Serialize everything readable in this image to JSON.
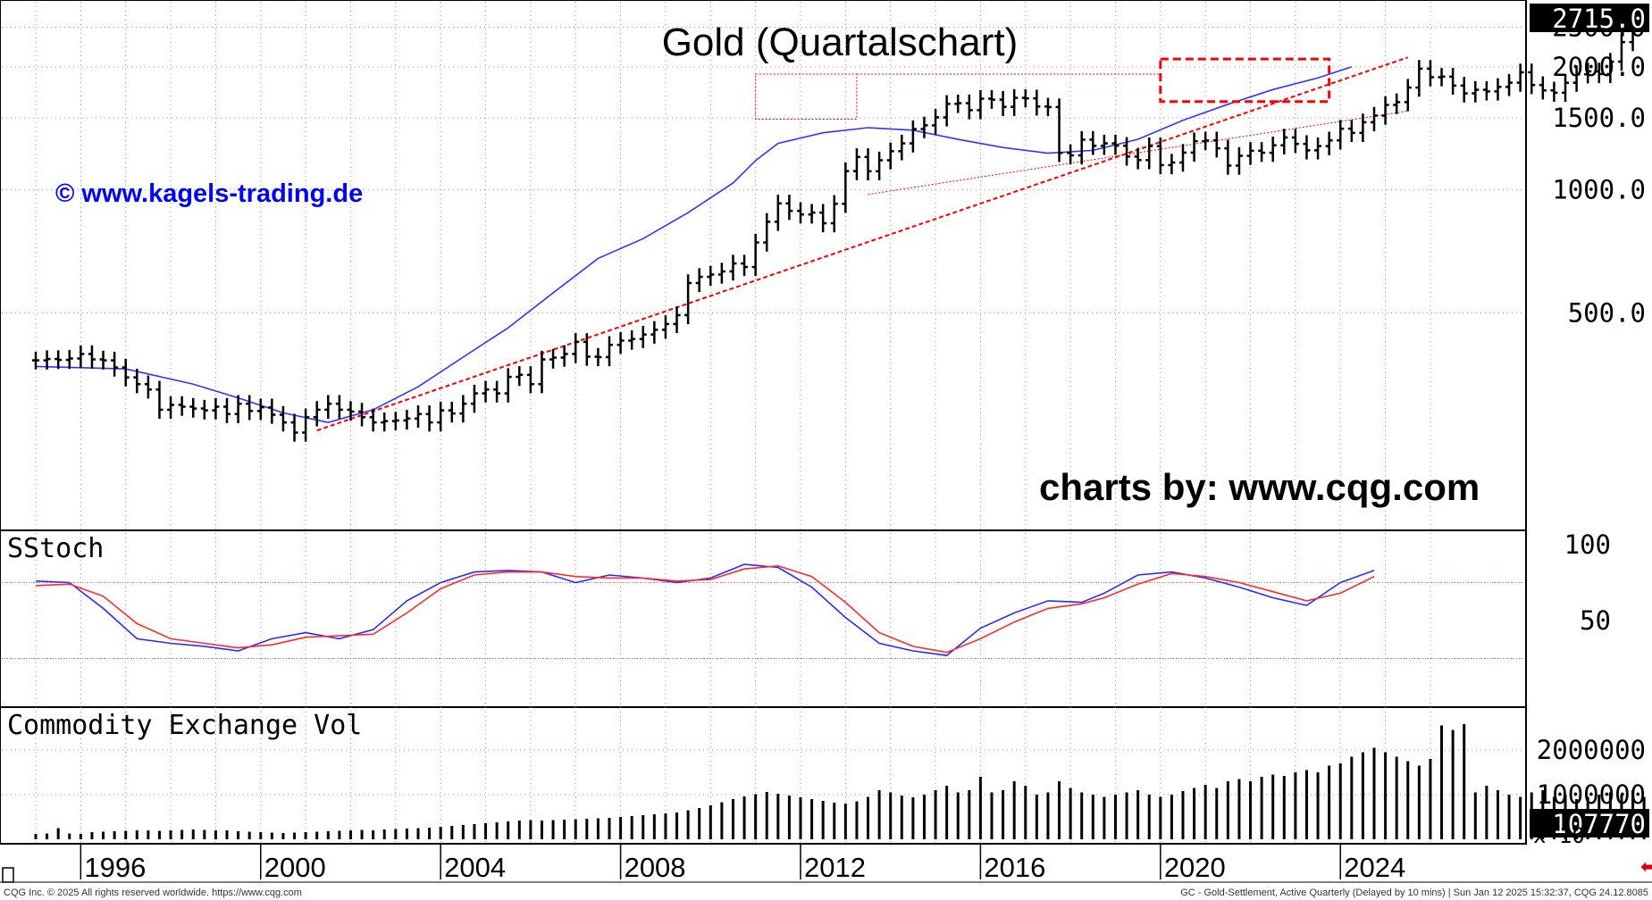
{
  "chart_data": [
    {
      "type": "ohlc",
      "title": "Gold (Quartalschart)",
      "watermark": "© www.kagels-trading.de",
      "credit": "charts by: www.cqg.com",
      "yscale": "log",
      "ylim": [
        150,
        2800
      ],
      "yticks": [
        "2500.0",
        "2000.0",
        "1500.0",
        "1000.0",
        "500.0"
      ],
      "ytick_values": [
        2500,
        2000,
        1500,
        1000,
        500
      ],
      "last_price_label": "2715.0",
      "last_price": 2715,
      "x_start": 1995.0,
      "x_end": 2024.75,
      "x_ticks": [
        "1996",
        "2000",
        "2004",
        "2008",
        "2012",
        "2016",
        "2020",
        "2024"
      ],
      "x_tick_values": [
        1996,
        2000,
        2004,
        2008,
        2012,
        2016,
        2020,
        2024
      ],
      "close": [
        383,
        386,
        384,
        387,
        397,
        385,
        383,
        368,
        348,
        335,
        325,
        290,
        298,
        295,
        292,
        289,
        295,
        283,
        300,
        288,
        294,
        282,
        270,
        255,
        278,
        290,
        300,
        290,
        287,
        278,
        270,
        272,
        273,
        276,
        283,
        270,
        289,
        284,
        300,
        318,
        325,
        318,
        349,
        353,
        335,
        385,
        389,
        397,
        425,
        391,
        390,
        418,
        428,
        432,
        443,
        455,
        470,
        494,
        592,
        613,
        621,
        632,
        661,
        648,
        744,
        836,
        927,
        889,
        871,
        880,
        829,
        925,
        1112,
        1204,
        1111,
        1182,
        1244,
        1300,
        1409,
        1439,
        1505,
        1624,
        1630,
        1567,
        1672,
        1663,
        1597,
        1680,
        1675,
        1600,
        1595,
        1232,
        1215,
        1327,
        1282,
        1300,
        1283,
        1207,
        1183,
        1280,
        1150,
        1167,
        1234,
        1316,
        1322,
        1264,
        1147,
        1212,
        1247,
        1233,
        1286,
        1344,
        1296,
        1250,
        1280,
        1322,
        1412,
        1379,
        1464,
        1520,
        1614,
        1640,
        1780,
        1980,
        1887,
        1893,
        1800,
        1723,
        1758,
        1742,
        1787,
        1830,
        1940,
        1806,
        1752,
        1729,
        1829,
        1918,
        1950,
        1921,
        2060,
        2300,
        2648,
        2715
      ],
      "moving_average": [
        [
          1995.0,
          370
        ],
        [
          1997.0,
          365
        ],
        [
          1998.5,
          335
        ],
        [
          1999.5,
          310
        ],
        [
          2000.5,
          285
        ],
        [
          2001.5,
          270
        ],
        [
          2002.5,
          290
        ],
        [
          2003.5,
          330
        ],
        [
          2004.5,
          390
        ],
        [
          2005.5,
          460
        ],
        [
          2006.5,
          560
        ],
        [
          2007.5,
          680
        ],
        [
          2008.5,
          760
        ],
        [
          2009.5,
          880
        ],
        [
          2010.5,
          1040
        ],
        [
          2011.0,
          1180
        ],
        [
          2011.5,
          1300
        ],
        [
          2012.5,
          1380
        ],
        [
          2013.5,
          1420
        ],
        [
          2014.5,
          1400
        ],
        [
          2015.5,
          1330
        ],
        [
          2016.5,
          1270
        ],
        [
          2017.5,
          1230
        ],
        [
          2018.5,
          1250
        ],
        [
          2019.5,
          1330
        ],
        [
          2020.5,
          1480
        ],
        [
          2021.5,
          1620
        ],
        [
          2022.5,
          1760
        ],
        [
          2023.5,
          1880
        ],
        [
          2024.25,
          2000
        ]
      ],
      "trendlines": {
        "long_term_support": [
          [
            2001.25,
            258
          ],
          [
            2025.5,
            2110
          ]
        ],
        "lower_support": [
          [
            2013.5,
            975
          ],
          [
            2025.5,
            1560
          ]
        ],
        "top_2011_horizontal": [
          1920,
          1920
        ],
        "box_2011": {
          "x": [
            2011.0,
            2013.25
          ],
          "y": [
            1490,
            1920
          ]
        },
        "box_2020": {
          "x": [
            2020.0,
            2023.75
          ],
          "y": [
            1645,
            2090
          ]
        }
      }
    },
    {
      "type": "line",
      "panel_label": "SStoch",
      "ylim": [
        0,
        100
      ],
      "yticks": [
        "100",
        "50"
      ],
      "ytick_values": [
        100,
        50
      ],
      "upper_band": 75,
      "lower_band": 25,
      "series": [
        {
          "name": "%K",
          "color": "#2a2aff",
          "points": [
            [
              1995.0,
              76
            ],
            [
              1995.75,
              75
            ],
            [
              1996.5,
              58
            ],
            [
              1997.25,
              38
            ],
            [
              1998.0,
              35
            ],
            [
              1998.75,
              33
            ],
            [
              1999.5,
              30
            ],
            [
              2000.25,
              38
            ],
            [
              2001.0,
              42
            ],
            [
              2001.75,
              38
            ],
            [
              2002.5,
              44
            ],
            [
              2003.25,
              63
            ],
            [
              2004.0,
              75
            ],
            [
              2004.75,
              82
            ],
            [
              2005.5,
              83
            ],
            [
              2006.25,
              82
            ],
            [
              2007.0,
              75
            ],
            [
              2007.75,
              80
            ],
            [
              2008.5,
              78
            ],
            [
              2009.25,
              75
            ],
            [
              2010.0,
              78
            ],
            [
              2010.75,
              87
            ],
            [
              2011.5,
              85
            ],
            [
              2012.25,
              72
            ],
            [
              2013.0,
              52
            ],
            [
              2013.75,
              35
            ],
            [
              2014.5,
              30
            ],
            [
              2015.25,
              27
            ],
            [
              2016.0,
              45
            ],
            [
              2016.75,
              55
            ],
            [
              2017.5,
              63
            ],
            [
              2018.25,
              62
            ],
            [
              2018.75,
              68
            ],
            [
              2019.5,
              80
            ],
            [
              2020.25,
              82
            ],
            [
              2021.0,
              78
            ],
            [
              2021.75,
              72
            ],
            [
              2022.5,
              65
            ],
            [
              2023.25,
              60
            ],
            [
              2024.0,
              75
            ],
            [
              2024.75,
              83
            ]
          ]
        },
        {
          "name": "%D",
          "color": "#ff2a2a",
          "points": [
            [
              1995.0,
              73
            ],
            [
              1995.75,
              74
            ],
            [
              1996.5,
              66
            ],
            [
              1997.25,
              48
            ],
            [
              1998.0,
              38
            ],
            [
              1998.75,
              35
            ],
            [
              1999.5,
              32
            ],
            [
              2000.25,
              34
            ],
            [
              2001.0,
              39
            ],
            [
              2001.75,
              40
            ],
            [
              2002.5,
              41
            ],
            [
              2003.25,
              55
            ],
            [
              2004.0,
              71
            ],
            [
              2004.75,
              80
            ],
            [
              2005.5,
              82
            ],
            [
              2006.25,
              82
            ],
            [
              2007.0,
              79
            ],
            [
              2007.75,
              78
            ],
            [
              2008.5,
              78
            ],
            [
              2009.25,
              76
            ],
            [
              2010.0,
              77
            ],
            [
              2010.75,
              84
            ],
            [
              2011.5,
              86
            ],
            [
              2012.25,
              79
            ],
            [
              2013.0,
              62
            ],
            [
              2013.75,
              42
            ],
            [
              2014.5,
              33
            ],
            [
              2015.25,
              29
            ],
            [
              2016.0,
              38
            ],
            [
              2016.75,
              49
            ],
            [
              2017.5,
              58
            ],
            [
              2018.25,
              61
            ],
            [
              2018.75,
              65
            ],
            [
              2019.5,
              74
            ],
            [
              2020.25,
              81
            ],
            [
              2021.0,
              79
            ],
            [
              2021.75,
              75
            ],
            [
              2022.5,
              69
            ],
            [
              2023.25,
              63
            ],
            [
              2024.0,
              68
            ],
            [
              2024.75,
              79
            ]
          ]
        }
      ]
    },
    {
      "type": "bar",
      "panel_label": "Commodity Exchange Vol",
      "ylim": [
        0,
        2800000
      ],
      "yticks": [
        "2000000",
        "1000000"
      ],
      "ytick_values": [
        2000000,
        1000000
      ],
      "last_volume_label": "107770",
      "last_volume": 107770,
      "multiplier_label": "x 10",
      "values": [
        120000,
        130000,
        250000,
        130000,
        120000,
        160000,
        170000,
        180000,
        190000,
        200000,
        200000,
        190000,
        200000,
        210000,
        220000,
        210000,
        200000,
        200000,
        180000,
        170000,
        160000,
        150000,
        140000,
        150000,
        160000,
        170000,
        180000,
        190000,
        200000,
        210000,
        200000,
        220000,
        230000,
        240000,
        250000,
        260000,
        280000,
        300000,
        320000,
        340000,
        360000,
        380000,
        400000,
        420000,
        430000,
        420000,
        430000,
        440000,
        450000,
        460000,
        470000,
        480000,
        500000,
        520000,
        540000,
        560000,
        580000,
        600000,
        650000,
        700000,
        760000,
        830000,
        900000,
        960000,
        1010000,
        1060000,
        1020000,
        980000,
        940000,
        900000,
        860000,
        820000,
        800000,
        850000,
        950000,
        1100000,
        1050000,
        980000,
        940000,
        1000000,
        1100000,
        1200000,
        1050000,
        1100000,
        1400000,
        1050000,
        1100000,
        1300000,
        1200000,
        1000000,
        1050000,
        1300000,
        1150000,
        1050000,
        1000000,
        950000,
        1000000,
        1050000,
        1100000,
        1000000,
        950000,
        1000000,
        1080000,
        1150000,
        1220000,
        1150000,
        1300000,
        1350000,
        1300000,
        1400000,
        1450000,
        1420000,
        1500000,
        1550000,
        1500000,
        1650000,
        1700000,
        1850000,
        1950000,
        2050000,
        1950000,
        1850000,
        1750000,
        1650000,
        1800000,
        2550000,
        2450000,
        2580000,
        1050000,
        1200000,
        1100000,
        1000000,
        950000,
        1050000,
        1100000,
        950000,
        1000000,
        900000,
        950000,
        1000000,
        1050000,
        1000000,
        1100000,
        950000,
        900000,
        1000000,
        1050000,
        1000000,
        107770
      ]
    }
  ],
  "footer": {
    "left": "CQG Inc. © 2025 All rights reserved worldwide. https://www.cqg.com",
    "right": "GC - Gold-Settlement, Active Quarterly (Delayed by 10 mins) | Sun Jan 12 2025 15:32:37, CQG 24.12.8085"
  },
  "colors": {
    "price_bar": "#000000",
    "moving_average": "#3333ff",
    "trendline": "#ff0000",
    "stoch_k": "#2a2aff",
    "stoch_d": "#ff2a2a",
    "volume": "#000000",
    "grid": "#999999"
  }
}
